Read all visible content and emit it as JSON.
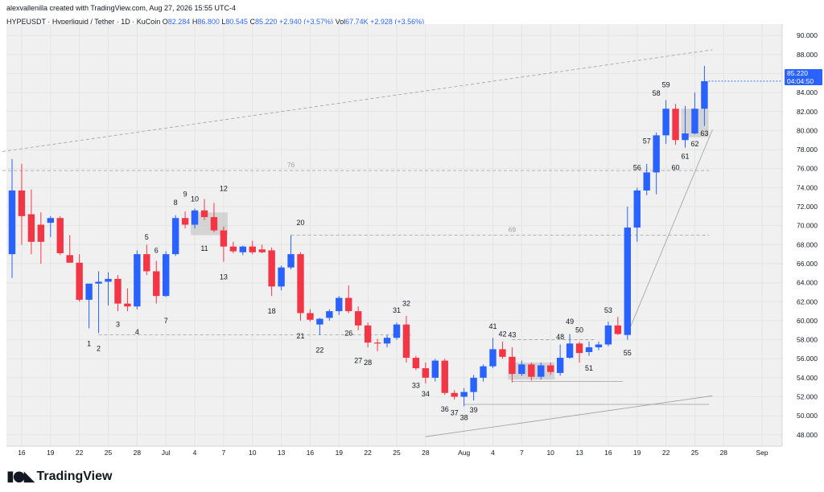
{
  "header": {
    "attribution": "alexvallenilla created with TradingView.com, Aug 27, 2026 15:55 UTC-4",
    "symbol_line": "HYPEUSDT · Hyperliquid / Tether · 1D · KuCoin",
    "ohlc": {
      "o_label": "O",
      "o": "82.284",
      "h_label": "H",
      "h": "86.800",
      "l_label": "L",
      "l": "80.545",
      "c_label": "C",
      "c": "85.220",
      "change": "+2.940 (+3.57%)"
    },
    "volume": {
      "label": "Vol",
      "value": "67.74K",
      "change": "+2.928 (+3.56%)"
    }
  },
  "price_tag": {
    "price": "85.220",
    "countdown": "04:04:50"
  },
  "footer": {
    "logo_icon": "tradingview-logo-icon",
    "brand": "TradingView"
  },
  "colors": {
    "up": "#2962ff",
    "down": "#f23645",
    "grid": "#f0f3fa",
    "axis_text": "#131722"
  },
  "chart_data": {
    "type": "candlestick",
    "y_ticks": [
      "48.000",
      "50.000",
      "52.000",
      "54.000",
      "56.000",
      "58.000",
      "60.000",
      "62.000",
      "64.000",
      "66.000",
      "68.000",
      "70.000",
      "72.000",
      "74.000",
      "76.000",
      "78.000",
      "80.000",
      "82.000",
      "84.000",
      "86.000",
      "88.000",
      "90.000"
    ],
    "ylim": [
      46.8,
      91.2
    ],
    "x_ticks": [
      {
        "label": "16",
        "date": "2026-06-16"
      },
      {
        "label": "19",
        "date": "2026-06-19"
      },
      {
        "label": "22",
        "date": "2026-06-22"
      },
      {
        "label": "25",
        "date": "2026-06-25"
      },
      {
        "label": "28",
        "date": "2026-06-28"
      },
      {
        "label": "Jul",
        "date": "2026-07-01"
      },
      {
        "label": "4",
        "date": "2026-07-04"
      },
      {
        "label": "7",
        "date": "2026-07-07"
      },
      {
        "label": "10",
        "date": "2026-07-10"
      },
      {
        "label": "13",
        "date": "2026-07-13"
      },
      {
        "label": "16",
        "date": "2026-07-16"
      },
      {
        "label": "19",
        "date": "2026-07-19"
      },
      {
        "label": "22",
        "date": "2026-07-22"
      },
      {
        "label": "25",
        "date": "2026-07-25"
      },
      {
        "label": "28",
        "date": "2026-07-28"
      },
      {
        "label": "Aug",
        "date": "2026-08-01"
      },
      {
        "label": "4",
        "date": "2026-08-04"
      },
      {
        "label": "7",
        "date": "2026-08-07"
      },
      {
        "label": "10",
        "date": "2026-08-10"
      },
      {
        "label": "13",
        "date": "2026-08-13"
      },
      {
        "label": "16",
        "date": "2026-08-16"
      },
      {
        "label": "19",
        "date": "2026-08-19"
      },
      {
        "label": "22",
        "date": "2026-08-22"
      },
      {
        "label": "25",
        "date": "2026-08-25"
      },
      {
        "label": "28",
        "date": "2026-08-28"
      },
      {
        "label": "Sep",
        "date": "2026-09-01"
      }
    ],
    "candles": [
      {
        "d": "2026-06-15",
        "o": 67.0,
        "h": 77.0,
        "l": 64.5,
        "c": 73.7
      },
      {
        "d": "2026-06-16",
        "o": 73.7,
        "h": 76.5,
        "l": 68.0,
        "c": 71.0
      },
      {
        "d": "2026-06-17",
        "o": 71.2,
        "h": 73.8,
        "l": 67.0,
        "c": 68.3
      },
      {
        "d": "2026-06-18",
        "o": 70.1,
        "h": 71.4,
        "l": 66.0,
        "c": 68.3
      },
      {
        "d": "2026-06-19",
        "o": 70.3,
        "h": 71.0,
        "l": 68.8,
        "c": 70.8
      },
      {
        "d": "2026-06-20",
        "o": 70.8,
        "h": 71.0,
        "l": 66.9,
        "c": 67.1
      },
      {
        "d": "2026-06-21",
        "o": 66.9,
        "h": 69.0,
        "l": 66.2,
        "c": 66.1
      },
      {
        "d": "2026-06-22",
        "o": 66.1,
        "h": 67.0,
        "l": 62.0,
        "c": 62.2
      },
      {
        "d": "2026-06-23",
        "o": 62.2,
        "h": 63.8,
        "l": 59.2,
        "c": 63.9
      },
      {
        "d": "2026-06-24",
        "o": 63.9,
        "h": 65.2,
        "l": 58.7,
        "c": 64.1
      },
      {
        "d": "2026-06-25",
        "o": 64.1,
        "h": 65.1,
        "l": 61.6,
        "c": 64.4
      },
      {
        "d": "2026-06-26",
        "o": 64.4,
        "h": 64.8,
        "l": 61.0,
        "c": 61.8
      },
      {
        "d": "2026-06-27",
        "o": 61.8,
        "h": 63.4,
        "l": 61.0,
        "c": 61.5
      },
      {
        "d": "2026-06-28",
        "o": 61.5,
        "h": 67.4,
        "l": 61.2,
        "c": 67.0
      },
      {
        "d": "2026-06-29",
        "o": 67.0,
        "h": 68.0,
        "l": 64.8,
        "c": 65.2
      },
      {
        "d": "2026-06-30",
        "o": 65.2,
        "h": 66.3,
        "l": 61.8,
        "c": 62.6
      },
      {
        "d": "2026-07-01",
        "o": 62.6,
        "h": 67.3,
        "l": 62.5,
        "c": 67.0
      },
      {
        "d": "2026-07-02",
        "o": 67.0,
        "h": 71.1,
        "l": 66.8,
        "c": 70.8
      },
      {
        "d": "2026-07-03",
        "o": 70.8,
        "h": 71.5,
        "l": 69.7,
        "c": 70.1
      },
      {
        "d": "2026-07-04",
        "o": 70.1,
        "h": 71.8,
        "l": 69.7,
        "c": 71.6
      },
      {
        "d": "2026-07-05",
        "o": 71.6,
        "h": 72.8,
        "l": 70.6,
        "c": 70.9
      },
      {
        "d": "2026-07-06",
        "o": 70.9,
        "h": 72.4,
        "l": 69.3,
        "c": 69.5
      },
      {
        "d": "2026-07-07",
        "o": 69.5,
        "h": 69.9,
        "l": 66.2,
        "c": 67.8
      },
      {
        "d": "2026-07-08",
        "o": 67.8,
        "h": 68.3,
        "l": 67.1,
        "c": 67.3
      },
      {
        "d": "2026-07-09",
        "o": 67.2,
        "h": 67.9,
        "l": 66.9,
        "c": 67.8
      },
      {
        "d": "2026-07-10",
        "o": 67.8,
        "h": 68.4,
        "l": 67.0,
        "c": 67.2
      },
      {
        "d": "2026-07-11",
        "o": 67.5,
        "h": 68.0,
        "l": 67.1,
        "c": 67.2
      },
      {
        "d": "2026-07-12",
        "o": 67.4,
        "h": 67.7,
        "l": 62.6,
        "c": 63.6
      },
      {
        "d": "2026-07-13",
        "o": 63.6,
        "h": 65.8,
        "l": 63.2,
        "c": 65.6
      },
      {
        "d": "2026-07-14",
        "o": 65.6,
        "h": 69.0,
        "l": 65.4,
        "c": 67.0
      },
      {
        "d": "2026-07-15",
        "o": 67.0,
        "h": 67.2,
        "l": 60.0,
        "c": 60.8
      },
      {
        "d": "2026-07-16",
        "o": 60.8,
        "h": 61.2,
        "l": 59.9,
        "c": 60.1
      },
      {
        "d": "2026-07-17",
        "o": 59.6,
        "h": 60.3,
        "l": 58.5,
        "c": 60.2
      },
      {
        "d": "2026-07-18",
        "o": 60.3,
        "h": 61.2,
        "l": 60.0,
        "c": 61.0
      },
      {
        "d": "2026-07-19",
        "o": 61.0,
        "h": 62.6,
        "l": 60.6,
        "c": 62.4
      },
      {
        "d": "2026-07-20",
        "o": 62.4,
        "h": 63.7,
        "l": 60.8,
        "c": 61.0
      },
      {
        "d": "2026-07-21",
        "o": 61.0,
        "h": 61.5,
        "l": 59.0,
        "c": 59.5
      },
      {
        "d": "2026-07-22",
        "o": 59.5,
        "h": 59.8,
        "l": 57.2,
        "c": 57.7
      },
      {
        "d": "2026-07-23",
        "o": 57.7,
        "h": 58.1,
        "l": 56.8,
        "c": 57.6
      },
      {
        "d": "2026-07-24",
        "o": 57.6,
        "h": 58.5,
        "l": 57.2,
        "c": 58.2
      },
      {
        "d": "2026-07-25",
        "o": 58.2,
        "h": 59.8,
        "l": 58.0,
        "c": 59.6
      },
      {
        "d": "2026-07-26",
        "o": 59.6,
        "h": 60.5,
        "l": 55.6,
        "c": 56.1
      },
      {
        "d": "2026-07-27",
        "o": 56.1,
        "h": 56.3,
        "l": 54.8,
        "c": 55.0
      },
      {
        "d": "2026-07-28",
        "o": 55.0,
        "h": 55.6,
        "l": 53.4,
        "c": 54.0
      },
      {
        "d": "2026-07-29",
        "o": 54.0,
        "h": 56.0,
        "l": 53.6,
        "c": 55.8
      },
      {
        "d": "2026-07-30",
        "o": 55.8,
        "h": 56.0,
        "l": 52.2,
        "c": 52.4
      },
      {
        "d": "2026-07-31",
        "o": 52.4,
        "h": 52.7,
        "l": 51.7,
        "c": 52.0
      },
      {
        "d": "2026-08-01",
        "o": 52.0,
        "h": 52.9,
        "l": 51.0,
        "c": 52.5
      },
      {
        "d": "2026-08-02",
        "o": 52.5,
        "h": 54.3,
        "l": 51.6,
        "c": 54.0
      },
      {
        "d": "2026-08-03",
        "o": 54.0,
        "h": 55.4,
        "l": 53.6,
        "c": 55.2
      },
      {
        "d": "2026-08-04",
        "o": 55.2,
        "h": 58.2,
        "l": 55.0,
        "c": 57.0
      },
      {
        "d": "2026-08-05",
        "o": 57.0,
        "h": 57.8,
        "l": 56.0,
        "c": 56.2
      },
      {
        "d": "2026-08-06",
        "o": 56.2,
        "h": 57.2,
        "l": 53.5,
        "c": 54.4
      },
      {
        "d": "2026-08-07",
        "o": 54.4,
        "h": 55.8,
        "l": 54.2,
        "c": 55.4
      },
      {
        "d": "2026-08-08",
        "o": 55.4,
        "h": 55.6,
        "l": 53.7,
        "c": 54.1
      },
      {
        "d": "2026-08-09",
        "o": 54.1,
        "h": 55.6,
        "l": 53.8,
        "c": 55.3
      },
      {
        "d": "2026-08-10",
        "o": 55.3,
        "h": 55.6,
        "l": 54.3,
        "c": 54.6
      },
      {
        "d": "2026-08-11",
        "o": 54.5,
        "h": 57.5,
        "l": 54.2,
        "c": 56.1
      },
      {
        "d": "2026-08-12",
        "o": 56.1,
        "h": 58.6,
        "l": 56.0,
        "c": 57.6
      },
      {
        "d": "2026-08-13",
        "o": 57.6,
        "h": 57.8,
        "l": 55.6,
        "c": 56.6
      },
      {
        "d": "2026-08-14",
        "o": 56.7,
        "h": 57.8,
        "l": 56.3,
        "c": 57.2
      },
      {
        "d": "2026-08-15",
        "o": 57.2,
        "h": 57.8,
        "l": 56.9,
        "c": 57.5
      },
      {
        "d": "2026-08-16",
        "o": 57.5,
        "h": 59.9,
        "l": 57.3,
        "c": 59.5
      },
      {
        "d": "2026-08-17",
        "o": 59.5,
        "h": 60.4,
        "l": 58.5,
        "c": 58.6
      },
      {
        "d": "2026-08-18",
        "o": 58.5,
        "h": 72.0,
        "l": 58.0,
        "c": 69.8
      },
      {
        "d": "2026-08-19",
        "o": 69.8,
        "h": 74.0,
        "l": 68.3,
        "c": 73.7
      },
      {
        "d": "2026-08-20",
        "o": 73.7,
        "h": 76.5,
        "l": 73.2,
        "c": 75.6
      },
      {
        "d": "2026-08-21",
        "o": 75.6,
        "h": 79.8,
        "l": 73.3,
        "c": 79.5
      },
      {
        "d": "2026-08-22",
        "o": 79.5,
        "h": 83.2,
        "l": 78.6,
        "c": 82.3
      },
      {
        "d": "2026-08-23",
        "o": 82.3,
        "h": 82.8,
        "l": 78.5,
        "c": 79.0
      },
      {
        "d": "2026-08-24",
        "o": 79.0,
        "h": 82.6,
        "l": 78.2,
        "c": 79.7
      },
      {
        "d": "2026-08-25",
        "o": 79.7,
        "h": 84.0,
        "l": 79.6,
        "c": 82.3
      },
      {
        "d": "2026-08-26",
        "o": 82.3,
        "h": 86.8,
        "l": 80.5,
        "c": 85.2
      }
    ],
    "annotations": [
      {
        "label": "1",
        "d": "2026-06-23",
        "y": 58.1,
        "pos": "below"
      },
      {
        "label": "2",
        "d": "2026-06-24",
        "y": 57.6,
        "pos": "below"
      },
      {
        "label": "3",
        "d": "2026-06-26",
        "y": 60.1,
        "pos": "below"
      },
      {
        "label": "4",
        "d": "2026-06-28",
        "y": 59.3,
        "pos": "below"
      },
      {
        "label": "5",
        "d": "2026-06-29",
        "y": 68.3,
        "pos": "above"
      },
      {
        "label": "6",
        "d": "2026-06-30",
        "y": 66.9,
        "pos": "above"
      },
      {
        "label": "7",
        "d": "2026-07-01",
        "y": 60.5,
        "pos": "below"
      },
      {
        "label": "8",
        "d": "2026-07-02",
        "y": 71.9,
        "pos": "above"
      },
      {
        "label": "9",
        "d": "2026-07-03",
        "y": 72.8,
        "pos": "above"
      },
      {
        "label": "10",
        "d": "2026-07-04",
        "y": 72.3,
        "pos": "above"
      },
      {
        "label": "11",
        "d": "2026-07-05",
        "y": 68.1,
        "pos": "below"
      },
      {
        "label": "12",
        "d": "2026-07-07",
        "y": 73.4,
        "pos": "above"
      },
      {
        "label": "13",
        "d": "2026-07-07",
        "y": 65.1,
        "pos": "below"
      },
      {
        "label": "18",
        "d": "2026-07-12",
        "y": 61.5,
        "pos": "below"
      },
      {
        "label": "20",
        "d": "2026-07-15",
        "y": 69.8,
        "pos": "above"
      },
      {
        "label": "21",
        "d": "2026-07-15",
        "y": 58.9,
        "pos": "below"
      },
      {
        "label": "22",
        "d": "2026-07-17",
        "y": 57.4,
        "pos": "below"
      },
      {
        "label": "26",
        "d": "2026-07-20",
        "y": 59.2,
        "pos": "below"
      },
      {
        "label": "27",
        "d": "2026-07-21",
        "y": 56.3,
        "pos": "below"
      },
      {
        "label": "28",
        "d": "2026-07-22",
        "y": 56.1,
        "pos": "below"
      },
      {
        "label": "31",
        "d": "2026-07-25",
        "y": 60.6,
        "pos": "above"
      },
      {
        "label": "32",
        "d": "2026-07-26",
        "y": 61.3,
        "pos": "above"
      },
      {
        "label": "33",
        "d": "2026-07-27",
        "y": 53.7,
        "pos": "below"
      },
      {
        "label": "34",
        "d": "2026-07-28",
        "y": 52.8,
        "pos": "below"
      },
      {
        "label": "36",
        "d": "2026-07-30",
        "y": 51.2,
        "pos": "below"
      },
      {
        "label": "37",
        "d": "2026-07-31",
        "y": 50.8,
        "pos": "below"
      },
      {
        "label": "38",
        "d": "2026-08-01",
        "y": 50.3,
        "pos": "below"
      },
      {
        "label": "39",
        "d": "2026-08-02",
        "y": 51.1,
        "pos": "below"
      },
      {
        "label": "41",
        "d": "2026-08-04",
        "y": 58.9,
        "pos": "above"
      },
      {
        "label": "42",
        "d": "2026-08-05",
        "y": 58.1,
        "pos": "above"
      },
      {
        "label": "43",
        "d": "2026-08-06",
        "y": 58.0,
        "pos": "above"
      },
      {
        "label": "48",
        "d": "2026-08-11",
        "y": 57.8,
        "pos": "above"
      },
      {
        "label": "49",
        "d": "2026-08-12",
        "y": 59.4,
        "pos": "above"
      },
      {
        "label": "50",
        "d": "2026-08-13",
        "y": 58.5,
        "pos": "above"
      },
      {
        "label": "51",
        "d": "2026-08-14",
        "y": 55.5,
        "pos": "below"
      },
      {
        "label": "53",
        "d": "2026-08-16",
        "y": 60.6,
        "pos": "above"
      },
      {
        "label": "55",
        "d": "2026-08-18",
        "y": 57.1,
        "pos": "below"
      },
      {
        "label": "56",
        "d": "2026-08-19",
        "y": 75.6,
        "pos": "above"
      },
      {
        "label": "57",
        "d": "2026-08-20",
        "y": 78.4,
        "pos": "above"
      },
      {
        "label": "58",
        "d": "2026-08-21",
        "y": 83.4,
        "pos": "above"
      },
      {
        "label": "59",
        "d": "2026-08-22",
        "y": 84.3,
        "pos": "above"
      },
      {
        "label": "60",
        "d": "2026-08-23",
        "y": 76.6,
        "pos": "below"
      },
      {
        "label": "61",
        "d": "2026-08-24",
        "y": 77.8,
        "pos": "below"
      },
      {
        "label": "62",
        "d": "2026-08-25",
        "y": 79.1,
        "pos": "below"
      },
      {
        "label": "63",
        "d": "2026-08-26",
        "y": 80.2,
        "pos": "below"
      }
    ],
    "level_lines": [
      {
        "label": "76",
        "y": 75.8,
        "from": "2026-06-14",
        "to": "2026-08-26",
        "style": "dashed",
        "label_at": "2026-07-14"
      },
      {
        "label": "69",
        "y": 69.0,
        "from": "2026-07-14",
        "to": "2026-08-26",
        "style": "dashed",
        "label_at": "2026-08-06"
      },
      {
        "label": "",
        "y": 58.5,
        "from": "2026-06-24",
        "to": "2026-07-26",
        "style": "dashed"
      },
      {
        "label": "",
        "y": 58.0,
        "from": "2026-08-06",
        "to": "2026-08-14",
        "style": "dashed"
      },
      {
        "label": "",
        "y": 53.6,
        "from": "2026-08-06",
        "to": "2026-08-17",
        "style": "solid"
      },
      {
        "label": "",
        "y": 51.2,
        "from": "2026-08-01",
        "to": "2026-08-26",
        "style": "solid"
      }
    ],
    "trend_lines": [
      {
        "from": {
          "d": "2026-06-14",
          "y": 77.8
        },
        "to": {
          "d": "2026-08-26",
          "y": 88.5
        },
        "style": "dashed"
      },
      {
        "from": {
          "d": "2026-07-28",
          "y": 47.8
        },
        "to": {
          "d": "2026-08-26",
          "y": 52.1
        },
        "style": "solid"
      },
      {
        "from": {
          "d": "2026-08-18",
          "y": 58.6
        },
        "to": {
          "d": "2026-08-26",
          "y": 80.1
        },
        "style": "solid"
      }
    ],
    "zones": [
      {
        "from": "2026-07-04",
        "to": "2026-07-07",
        "y0": 69.0,
        "y1": 71.4
      },
      {
        "from": "2026-08-06",
        "to": "2026-08-10",
        "y0": 53.8,
        "y1": 55.6
      },
      {
        "from": "2026-08-24",
        "to": "2026-08-26",
        "y0": 79.3,
        "y1": 82.3
      }
    ]
  }
}
